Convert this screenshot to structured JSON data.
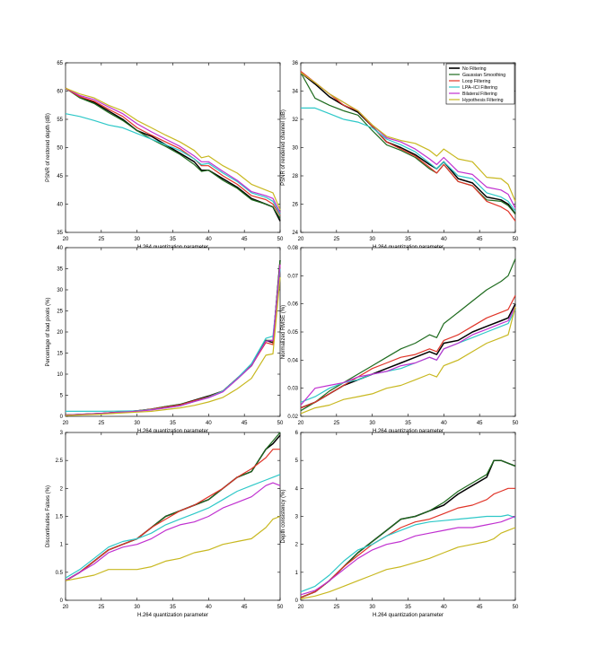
{
  "colors": {
    "No Filtering": "#000000",
    "Gaussian Smoothing": "#1e6b1e",
    "Loop Filtering": "#e03428",
    "LPA-ICI Filtering": "#2ec8c8",
    "Bilateral Filtering": "#c030d0",
    "Hypothesis Filtering": "#c8b820"
  },
  "legend_order": [
    "No Filtering",
    "Gaussian Smoothing",
    "Loop Filtering",
    "LPA–ICI Filtering",
    "Bilateral Filtering",
    "Hypothesis Filtering"
  ],
  "chart_data": [
    {
      "type": "line",
      "xlabel": "H.264 quantization parameter",
      "ylabel": "PSNR of restored depth (dB)",
      "xlim": [
        20,
        50
      ],
      "ylim": [
        35,
        65
      ],
      "xticks": [
        20,
        25,
        30,
        35,
        40,
        45,
        50
      ],
      "yticks": [
        35,
        40,
        45,
        50,
        55,
        60,
        65
      ],
      "x": [
        20,
        22,
        24,
        26,
        28,
        30,
        32,
        34,
        36,
        38,
        39,
        40,
        42,
        44,
        46,
        48,
        49,
        50
      ],
      "series": [
        {
          "name": "No Filtering",
          "values": [
            60.5,
            59,
            58,
            56.5,
            55,
            53,
            52,
            50.5,
            49,
            47.5,
            46,
            46,
            44.5,
            43,
            41,
            40,
            39.5,
            37
          ]
        },
        {
          "name": "Gaussian Smoothing",
          "values": [
            60.5,
            58.8,
            57.8,
            56.2,
            54.8,
            53,
            51.5,
            50.2,
            48.8,
            47,
            45.8,
            46,
            44.2,
            42.8,
            40.8,
            40,
            39.5,
            37.5
          ]
        },
        {
          "name": "Loop Filtering",
          "values": [
            60.5,
            59,
            58.2,
            56.8,
            55.5,
            53.5,
            52.2,
            51,
            49.8,
            48,
            46.8,
            46.8,
            45,
            43.5,
            41.5,
            40.8,
            40,
            38
          ]
        },
        {
          "name": "LPA–ICI Filtering",
          "values": [
            56,
            55.5,
            54.8,
            54,
            53.5,
            52.5,
            51.5,
            50.5,
            49.5,
            48,
            47,
            47.2,
            45.5,
            44,
            42,
            41.2,
            40.5,
            38.2
          ]
        },
        {
          "name": "Bilateral Filtering",
          "values": [
            60.5,
            59.2,
            58.5,
            57.2,
            56,
            54.2,
            52.8,
            51.5,
            50.2,
            48.5,
            47.5,
            47.5,
            45.8,
            44.2,
            42.2,
            41.5,
            41,
            38.5
          ]
        },
        {
          "name": "Hypothesis Filtering",
          "values": [
            60.5,
            59.5,
            58.8,
            57.5,
            56.5,
            54.8,
            53.5,
            52.2,
            51,
            49.5,
            48.2,
            48.5,
            46.8,
            45.5,
            43.5,
            42.5,
            42,
            39
          ]
        }
      ]
    },
    {
      "type": "line",
      "xlabel": "H.264 quantization parameter",
      "ylabel": "PSNR of rendered channel (dB)",
      "xlim": [
        20,
        50
      ],
      "ylim": [
        24,
        36
      ],
      "xticks": [
        20,
        25,
        30,
        35,
        40,
        45,
        50
      ],
      "yticks": [
        24,
        26,
        28,
        30,
        32,
        34,
        36
      ],
      "legend_position": "top-right",
      "x": [
        20,
        22,
        24,
        26,
        28,
        30,
        32,
        34,
        36,
        38,
        39,
        40,
        42,
        44,
        46,
        48,
        49,
        50
      ],
      "series": [
        {
          "name": "No Filtering",
          "values": [
            35.3,
            34.5,
            33.6,
            33,
            32.5,
            31.5,
            30.4,
            30,
            29.5,
            28.8,
            28.5,
            29,
            27.8,
            27.5,
            26.5,
            26.3,
            26,
            25.3
          ]
        },
        {
          "name": "Gaussian Smoothing",
          "values": [
            35.3,
            33.5,
            33,
            32.6,
            32.3,
            31.2,
            30.2,
            29.8,
            29.3,
            28.5,
            28.2,
            28.8,
            27.6,
            27.3,
            26.3,
            26.2,
            25.9,
            25.3
          ]
        },
        {
          "name": "Loop Filtering",
          "values": [
            35.4,
            34.6,
            33.8,
            33,
            32.6,
            31.5,
            30.4,
            29.9,
            29.4,
            28.6,
            28.2,
            28.8,
            27.6,
            27.3,
            26.2,
            25.8,
            25.5,
            24.8
          ]
        },
        {
          "name": "LPA–ICI Filtering",
          "values": [
            32.8,
            32.8,
            32.4,
            32,
            31.8,
            31.4,
            30.6,
            30.2,
            29.7,
            28.9,
            28.5,
            29,
            28,
            27.8,
            26.8,
            26.5,
            26.2,
            25.5
          ]
        },
        {
          "name": "Bilateral Filtering",
          "values": [
            35.3,
            34.6,
            33.8,
            33.2,
            32.6,
            31.6,
            30.7,
            30.4,
            29.9,
            29.2,
            28.8,
            29.3,
            28.3,
            28.1,
            27.2,
            27,
            26.7,
            25.7
          ]
        },
        {
          "name": "Hypothesis Filtering",
          "values": [
            35.3,
            34.6,
            33.8,
            33.2,
            32.6,
            31.6,
            30.8,
            30.5,
            30.3,
            29.8,
            29.4,
            29.9,
            29.2,
            29,
            27.9,
            27.8,
            27.4,
            26.2
          ]
        }
      ]
    },
    {
      "type": "line",
      "xlabel": "H.264 quantization parameter",
      "ylabel": "Percentage of bad pixels (%)",
      "xlim": [
        20,
        50
      ],
      "ylim": [
        0,
        40
      ],
      "xticks": [
        20,
        25,
        30,
        35,
        40,
        45,
        50
      ],
      "yticks": [
        0,
        5,
        10,
        15,
        20,
        25,
        30,
        35,
        40
      ],
      "x": [
        20,
        25,
        30,
        32,
        34,
        36,
        38,
        40,
        42,
        44,
        46,
        48,
        49,
        50
      ],
      "series": [
        {
          "name": "No Filtering",
          "values": [
            0.3,
            0.7,
            1.3,
            1.7,
            2.3,
            2.8,
            3.8,
            4.8,
            6,
            9,
            12,
            18,
            17.5,
            37
          ]
        },
        {
          "name": "Gaussian Smoothing",
          "values": [
            0.3,
            0.7,
            1.3,
            1.7,
            2.3,
            2.8,
            3.7,
            4.7,
            6,
            8.8,
            12,
            18,
            18,
            37
          ]
        },
        {
          "name": "Loop Filtering",
          "values": [
            0.3,
            0.7,
            1.3,
            1.7,
            2.2,
            2.7,
            3.7,
            4.6,
            6,
            9,
            12,
            17.5,
            17,
            36
          ]
        },
        {
          "name": "LPA–ICI Filtering",
          "values": [
            1.2,
            1.2,
            1.3,
            1.6,
            2,
            2.5,
            3.5,
            4.5,
            6,
            9,
            12.5,
            18.5,
            19,
            35
          ]
        },
        {
          "name": "Bilateral Filtering",
          "values": [
            0.3,
            0.7,
            1.2,
            1.5,
            2,
            2.5,
            3.5,
            4.4,
            5.8,
            8.8,
            12,
            17.8,
            18,
            36
          ]
        },
        {
          "name": "Hypothesis Filtering",
          "values": [
            0.2,
            0.5,
            1,
            1.2,
            1.6,
            2,
            2.6,
            3.4,
            4.5,
            6.5,
            9,
            14.5,
            14.8,
            33
          ]
        }
      ]
    },
    {
      "type": "line",
      "xlabel": "H.264 quantization parameter",
      "ylabel": "Normalized RMSE (%)",
      "xlim": [
        20,
        50
      ],
      "ylim": [
        0.02,
        0.08
      ],
      "xticks": [
        20,
        25,
        30,
        35,
        40,
        45,
        50
      ],
      "yticks": [
        0.02,
        0.03,
        0.04,
        0.05,
        0.06,
        0.07,
        0.08
      ],
      "x": [
        20,
        22,
        24,
        26,
        28,
        30,
        32,
        34,
        36,
        38,
        39,
        40,
        42,
        44,
        46,
        48,
        49,
        50
      ],
      "series": [
        {
          "name": "No Filtering",
          "values": [
            0.023,
            0.025,
            0.028,
            0.031,
            0.033,
            0.035,
            0.037,
            0.039,
            0.041,
            0.043,
            0.042,
            0.046,
            0.047,
            0.05,
            0.052,
            0.054,
            0.055,
            0.06
          ]
        },
        {
          "name": "Gaussian Smoothing",
          "values": [
            0.022,
            0.025,
            0.029,
            0.032,
            0.035,
            0.038,
            0.041,
            0.044,
            0.046,
            0.049,
            0.048,
            0.053,
            0.057,
            0.061,
            0.065,
            0.068,
            0.07,
            0.076
          ]
        },
        {
          "name": "Loop Filtering",
          "values": [
            0.023,
            0.025,
            0.028,
            0.031,
            0.034,
            0.037,
            0.039,
            0.041,
            0.042,
            0.044,
            0.043,
            0.047,
            0.049,
            0.052,
            0.055,
            0.057,
            0.058,
            0.063
          ]
        },
        {
          "name": "LPA–ICI Filtering",
          "values": [
            0.025,
            0.027,
            0.03,
            0.032,
            0.033,
            0.035,
            0.036,
            0.037,
            0.039,
            0.041,
            0.04,
            0.044,
            0.046,
            0.048,
            0.05,
            0.052,
            0.053,
            0.058
          ]
        },
        {
          "name": "Bilateral Filtering",
          "values": [
            0.024,
            0.03,
            0.031,
            0.032,
            0.034,
            0.035,
            0.036,
            0.038,
            0.039,
            0.041,
            0.04,
            0.044,
            0.046,
            0.049,
            0.051,
            0.053,
            0.054,
            0.059
          ]
        },
        {
          "name": "Hypothesis Filtering",
          "values": [
            0.021,
            0.023,
            0.024,
            0.026,
            0.027,
            0.028,
            0.03,
            0.031,
            0.033,
            0.035,
            0.034,
            0.038,
            0.04,
            0.043,
            0.046,
            0.048,
            0.049,
            0.059
          ]
        }
      ]
    },
    {
      "type": "line",
      "xlabel": "H.264 quantization parameter",
      "ylabel": "Discontinuities Falses (%)",
      "xlim": [
        20,
        50
      ],
      "ylim": [
        0,
        3
      ],
      "xticks": [
        20,
        25,
        30,
        35,
        40,
        45,
        50
      ],
      "yticks": [
        0,
        0.5,
        1,
        1.5,
        2,
        2.5,
        3
      ],
      "x": [
        20,
        22,
        24,
        26,
        28,
        30,
        32,
        34,
        36,
        38,
        40,
        42,
        44,
        46,
        48,
        49,
        50
      ],
      "series": [
        {
          "name": "No Filtering",
          "values": [
            0.35,
            0.5,
            0.7,
            0.9,
            1.0,
            1.1,
            1.3,
            1.5,
            1.6,
            1.7,
            1.8,
            2.0,
            2.2,
            2.3,
            2.7,
            2.8,
            2.95
          ]
        },
        {
          "name": "Gaussian Smoothing",
          "values": [
            0.35,
            0.5,
            0.7,
            0.9,
            1.0,
            1.1,
            1.3,
            1.5,
            1.6,
            1.7,
            1.8,
            2.0,
            2.2,
            2.3,
            2.7,
            2.85,
            3.0
          ]
        },
        {
          "name": "Loop Filtering",
          "values": [
            0.35,
            0.5,
            0.7,
            0.9,
            1.0,
            1.1,
            1.3,
            1.45,
            1.6,
            1.7,
            1.85,
            2.0,
            2.2,
            2.35,
            2.55,
            2.7,
            2.7
          ]
        },
        {
          "name": "LPA–ICI Filtering",
          "values": [
            0.4,
            0.55,
            0.75,
            0.95,
            1.05,
            1.1,
            1.2,
            1.35,
            1.45,
            1.55,
            1.65,
            1.8,
            1.95,
            2.05,
            2.15,
            2.2,
            2.25
          ]
        },
        {
          "name": "Bilateral Filtering",
          "values": [
            0.35,
            0.5,
            0.65,
            0.85,
            0.95,
            1.0,
            1.1,
            1.25,
            1.35,
            1.4,
            1.5,
            1.65,
            1.75,
            1.85,
            2.05,
            2.1,
            2.05
          ]
        },
        {
          "name": "Hypothesis Filtering",
          "values": [
            0.35,
            0.4,
            0.45,
            0.55,
            0.55,
            0.55,
            0.6,
            0.7,
            0.75,
            0.85,
            0.9,
            1.0,
            1.05,
            1.1,
            1.3,
            1.45,
            1.5
          ]
        }
      ]
    },
    {
      "type": "line",
      "xlabel": "H.264 quantization parameter",
      "ylabel": "Depth consistency (%)",
      "xlim": [
        20,
        50
      ],
      "ylim": [
        0,
        6
      ],
      "xticks": [
        20,
        25,
        30,
        35,
        40,
        45,
        50
      ],
      "yticks": [
        0,
        1,
        2,
        3,
        4,
        5,
        6
      ],
      "x": [
        20,
        22,
        24,
        26,
        28,
        30,
        32,
        34,
        36,
        38,
        40,
        42,
        44,
        46,
        47,
        48,
        49,
        50
      ],
      "series": [
        {
          "name": "No Filtering",
          "values": [
            0.1,
            0.3,
            0.7,
            1.2,
            1.7,
            2.1,
            2.5,
            2.9,
            3.0,
            3.2,
            3.4,
            3.8,
            4.1,
            4.4,
            5.0,
            5.0,
            4.9,
            4.8
          ]
        },
        {
          "name": "Gaussian Smoothing",
          "values": [
            0.1,
            0.3,
            0.7,
            1.2,
            1.7,
            2.1,
            2.5,
            2.9,
            3.0,
            3.2,
            3.5,
            3.9,
            4.2,
            4.5,
            5.0,
            5.0,
            4.9,
            4.8
          ]
        },
        {
          "name": "Loop Filtering",
          "values": [
            0.1,
            0.3,
            0.7,
            1.2,
            1.6,
            2.0,
            2.3,
            2.6,
            2.8,
            2.9,
            3.1,
            3.3,
            3.4,
            3.6,
            3.8,
            3.9,
            4.0,
            4.0
          ]
        },
        {
          "name": "LPA–ICI Filtering",
          "values": [
            0.3,
            0.5,
            0.9,
            1.4,
            1.8,
            2.0,
            2.3,
            2.5,
            2.7,
            2.8,
            2.85,
            2.9,
            2.95,
            3.0,
            3.0,
            3.0,
            3.05,
            2.95
          ]
        },
        {
          "name": "Bilateral Filtering",
          "values": [
            0.2,
            0.35,
            0.7,
            1.1,
            1.5,
            1.8,
            2.0,
            2.1,
            2.3,
            2.4,
            2.5,
            2.6,
            2.6,
            2.7,
            2.75,
            2.8,
            2.9,
            3.0
          ]
        },
        {
          "name": "Hypothesis Filtering",
          "values": [
            0.05,
            0.15,
            0.3,
            0.5,
            0.7,
            0.9,
            1.1,
            1.2,
            1.35,
            1.5,
            1.7,
            1.9,
            2.0,
            2.1,
            2.2,
            2.4,
            2.5,
            2.6
          ]
        }
      ]
    }
  ]
}
